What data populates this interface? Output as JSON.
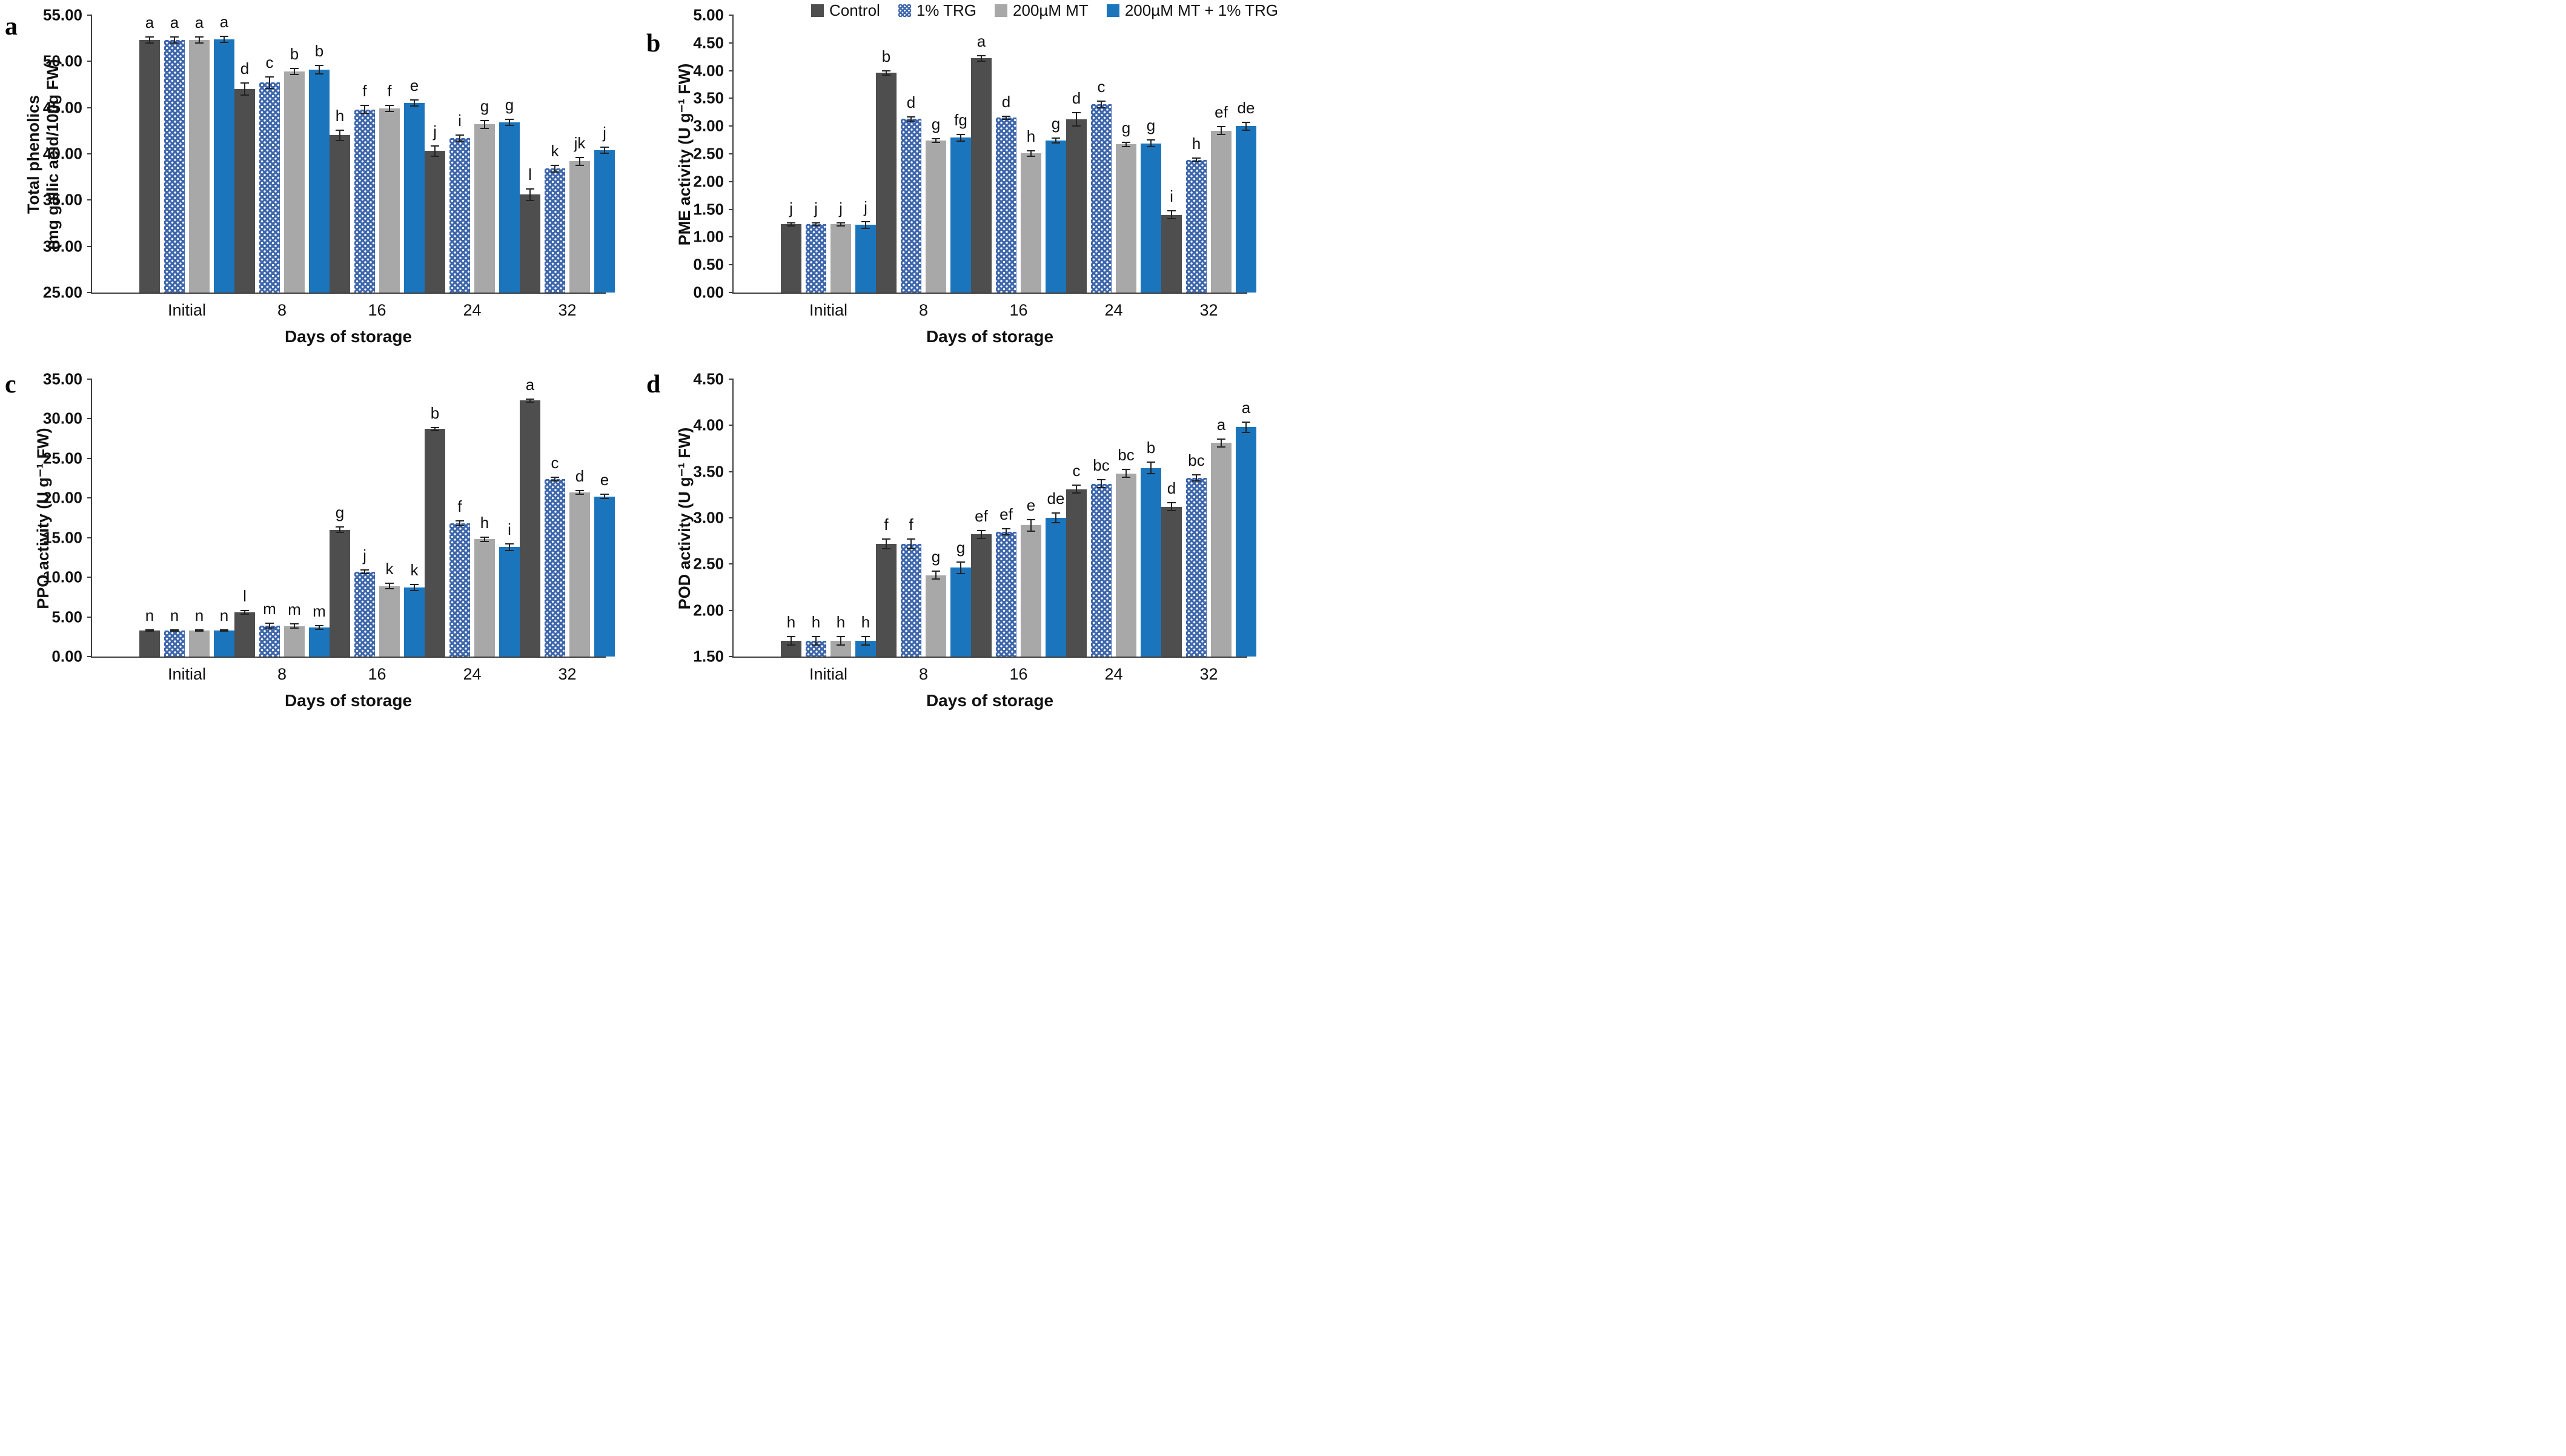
{
  "figure": {
    "xlabel": "Days of storage",
    "categories": [
      "Initial",
      "8",
      "16",
      "24",
      "32"
    ],
    "legend": [
      {
        "label": "Control",
        "color": "#4e4e4e",
        "pattern": "solid"
      },
      {
        "label": "1% TRG",
        "color": "#3d66ab",
        "pattern": "dots"
      },
      {
        "label": "200µM MT",
        "color": "#a8a8a8",
        "pattern": "solid"
      },
      {
        "label": "200µM MT + 1% TRG",
        "color": "#1b75bc",
        "pattern": "solid"
      }
    ],
    "colors": {
      "axis": "#3f3f3f",
      "error_bar": "#222222",
      "background": "#ffffff"
    }
  },
  "chart_data": [
    {
      "type": "bar",
      "panel_label": "a",
      "ylabel_lines": [
        "Total phenolics",
        "(mg gallic acid/100g FW)"
      ],
      "xlabel": "Days of storage",
      "ylim": [
        25,
        55
      ],
      "ytick_step": 5,
      "ytick_decimals": 2,
      "grid": false,
      "legend_position": "none",
      "categories": [
        "Initial",
        "8",
        "16",
        "24",
        "32"
      ],
      "series": [
        {
          "name": "Control",
          "values": [
            52.3,
            47.0,
            42.0,
            40.3,
            35.6
          ],
          "errors": [
            0.4,
            0.7,
            0.6,
            0.6,
            0.7
          ],
          "letters": [
            "a",
            "d",
            "h",
            "j",
            "l"
          ]
        },
        {
          "name": "1% TRG",
          "values": [
            52.3,
            47.7,
            44.8,
            41.7,
            38.4
          ],
          "errors": [
            0.4,
            0.7,
            0.5,
            0.4,
            0.4
          ],
          "letters": [
            "a",
            "c",
            "f",
            "i",
            "k"
          ]
        },
        {
          "name": "200µM MT",
          "values": [
            52.3,
            48.9,
            44.9,
            43.2,
            39.2
          ],
          "errors": [
            0.4,
            0.4,
            0.4,
            0.5,
            0.5
          ],
          "letters": [
            "a",
            "b",
            "f",
            "g",
            "jk"
          ]
        },
        {
          "name": "200µM MT + 1% TRG",
          "values": [
            52.4,
            49.1,
            45.5,
            43.4,
            40.4
          ],
          "errors": [
            0.4,
            0.5,
            0.4,
            0.4,
            0.4
          ],
          "letters": [
            "a",
            "b",
            "e",
            "g",
            "j"
          ]
        }
      ]
    },
    {
      "type": "bar",
      "panel_label": "b",
      "ylabel_lines": [
        "PME activity (U g⁻¹ FW)"
      ],
      "xlabel": "Days of storage",
      "ylim": [
        0,
        5
      ],
      "ytick_step": 0.5,
      "ytick_decimals": 2,
      "grid": false,
      "legend_position": "top-right",
      "categories": [
        "Initial",
        "8",
        "16",
        "24",
        "32"
      ],
      "series": [
        {
          "name": "Control",
          "values": [
            1.23,
            3.96,
            4.22,
            3.12,
            1.4
          ],
          "errors": [
            0.04,
            0.05,
            0.06,
            0.13,
            0.08
          ],
          "letters": [
            "j",
            "b",
            "a",
            "d",
            "i"
          ]
        },
        {
          "name": "1% TRG",
          "values": [
            1.23,
            3.13,
            3.15,
            3.39,
            2.39
          ],
          "errors": [
            0.04,
            0.05,
            0.04,
            0.07,
            0.04
          ],
          "letters": [
            "j",
            "d",
            "d",
            "c",
            "h"
          ]
        },
        {
          "name": "200µM MT",
          "values": [
            1.23,
            2.74,
            2.51,
            2.67,
            2.92
          ],
          "errors": [
            0.04,
            0.04,
            0.06,
            0.05,
            0.08
          ],
          "letters": [
            "j",
            "g",
            "h",
            "g",
            "ef"
          ]
        },
        {
          "name": "200µM MT + 1% TRG",
          "values": [
            1.22,
            2.79,
            2.74,
            2.69,
            3.0
          ],
          "errors": [
            0.07,
            0.07,
            0.05,
            0.07,
            0.08
          ],
          "letters": [
            "j",
            "fg",
            "g",
            "g",
            "de"
          ]
        }
      ]
    },
    {
      "type": "bar",
      "panel_label": "c",
      "ylabel_lines": [
        "PPO activity (U g⁻¹ FW)"
      ],
      "xlabel": "Days of storage",
      "ylim": [
        0,
        35
      ],
      "ytick_step": 5,
      "ytick_decimals": 2,
      "grid": false,
      "legend_position": "none",
      "categories": [
        "Initial",
        "8",
        "16",
        "24",
        "32"
      ],
      "series": [
        {
          "name": "Control",
          "values": [
            3.3,
            5.6,
            16.0,
            28.7,
            32.3
          ],
          "errors": [
            0.15,
            0.3,
            0.4,
            0.3,
            0.25
          ],
          "letters": [
            "n",
            "l",
            "g",
            "b",
            "a"
          ]
        },
        {
          "name": "1% TRG",
          "values": [
            3.3,
            3.9,
            10.7,
            16.8,
            22.4
          ],
          "errors": [
            0.15,
            0.35,
            0.3,
            0.4,
            0.3
          ],
          "letters": [
            "n",
            "m",
            "j",
            "f",
            "c"
          ]
        },
        {
          "name": "200µM MT",
          "values": [
            3.3,
            3.85,
            8.9,
            14.8,
            20.7
          ],
          "errors": [
            0.15,
            0.35,
            0.4,
            0.35,
            0.3
          ],
          "letters": [
            "n",
            "m",
            "k",
            "h",
            "d"
          ]
        },
        {
          "name": "200µM MT + 1% TRG",
          "values": [
            3.25,
            3.7,
            8.7,
            13.8,
            20.2
          ],
          "errors": [
            0.15,
            0.3,
            0.45,
            0.5,
            0.35
          ],
          "letters": [
            "n",
            "m",
            "k",
            "i",
            "e"
          ]
        }
      ]
    },
    {
      "type": "bar",
      "panel_label": "d",
      "ylabel_lines": [
        "POD activity (U g⁻¹ FW)"
      ],
      "xlabel": "Days of storage",
      "ylim": [
        1.5,
        4.5
      ],
      "ytick_step": 0.5,
      "ytick_decimals": 2,
      "grid": false,
      "legend_position": "none",
      "categories": [
        "Initial",
        "8",
        "16",
        "24",
        "32"
      ],
      "series": [
        {
          "name": "Control",
          "values": [
            1.67,
            2.72,
            2.82,
            3.31,
            3.12
          ],
          "errors": [
            0.05,
            0.06,
            0.05,
            0.05,
            0.05
          ],
          "letters": [
            "h",
            "f",
            "ef",
            "c",
            "d"
          ]
        },
        {
          "name": "1% TRG",
          "values": [
            1.67,
            2.72,
            2.85,
            3.37,
            3.43
          ],
          "errors": [
            0.05,
            0.06,
            0.04,
            0.05,
            0.04
          ],
          "letters": [
            "h",
            "f",
            "ef",
            "bc",
            "bc"
          ]
        },
        {
          "name": "200µM MT",
          "values": [
            1.67,
            2.38,
            2.92,
            3.48,
            3.81
          ],
          "errors": [
            0.05,
            0.05,
            0.07,
            0.05,
            0.05
          ],
          "letters": [
            "h",
            "g",
            "e",
            "bc",
            "a"
          ]
        },
        {
          "name": "200µM MT + 1% TRG",
          "values": [
            1.67,
            2.46,
            3.0,
            3.54,
            3.98
          ],
          "errors": [
            0.05,
            0.07,
            0.06,
            0.07,
            0.06
          ],
          "letters": [
            "h",
            "g",
            "de",
            "b",
            "a"
          ]
        }
      ]
    }
  ]
}
